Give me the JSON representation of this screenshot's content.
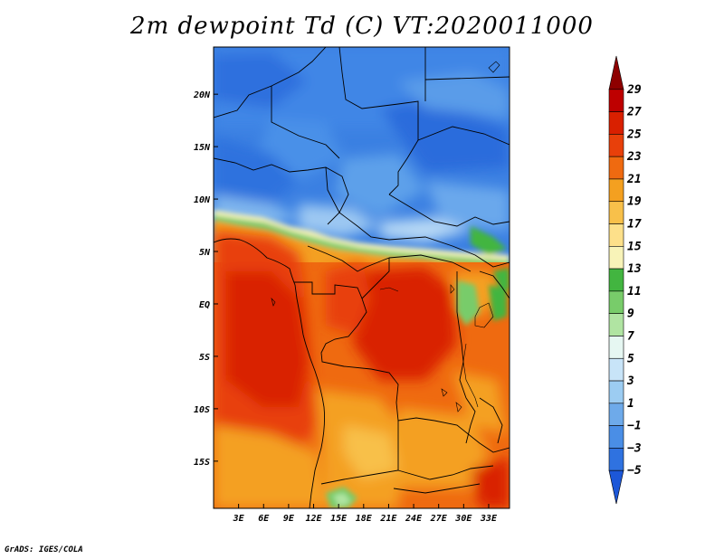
{
  "title": "2m dewpoint Td (C) VT:2020011000",
  "footer": "GrADS: IGES/COLA",
  "map": {
    "lat_range": [
      -19.5,
      24.5
    ],
    "lon_range": [
      0,
      35.5
    ],
    "lat_ticks": [
      {
        "value": 20,
        "label": "20N"
      },
      {
        "value": 15,
        "label": "15N"
      },
      {
        "value": 10,
        "label": "10N"
      },
      {
        "value": 5,
        "label": "5N"
      },
      {
        "value": 0,
        "label": "EQ"
      },
      {
        "value": -5,
        "label": "5S"
      },
      {
        "value": -10,
        "label": "10S"
      },
      {
        "value": -15,
        "label": "15S"
      }
    ],
    "lon_ticks": [
      {
        "value": 3,
        "label": "3E"
      },
      {
        "value": 6,
        "label": "6E"
      },
      {
        "value": 9,
        "label": "9E"
      },
      {
        "value": 12,
        "label": "12E"
      },
      {
        "value": 15,
        "label": "15E"
      },
      {
        "value": 18,
        "label": "18E"
      },
      {
        "value": 21,
        "label": "21E"
      },
      {
        "value": 24,
        "label": "24E"
      },
      {
        "value": 27,
        "label": "27E"
      },
      {
        "value": 30,
        "label": "30E"
      },
      {
        "value": 33,
        "label": "33E"
      }
    ]
  },
  "colorbar": {
    "labels": [
      "29",
      "27",
      "25",
      "23",
      "21",
      "19",
      "17",
      "15",
      "13",
      "11",
      "9",
      "7",
      "5",
      "3",
      "1",
      "−1",
      "−3",
      "−5"
    ],
    "colors": [
      "#8e0000",
      "#be0000",
      "#d92000",
      "#e8400a",
      "#ef6a10",
      "#f4a020",
      "#f8c04a",
      "#fde08a",
      "#f8f3b8",
      "#42b540",
      "#78cc6a",
      "#b0e4a2",
      "#e6f7f2",
      "#c8e4f8",
      "#9cccf2",
      "#6eaaea",
      "#4a8ee6",
      "#2f72e0",
      "#1c57d8"
    ]
  }
}
